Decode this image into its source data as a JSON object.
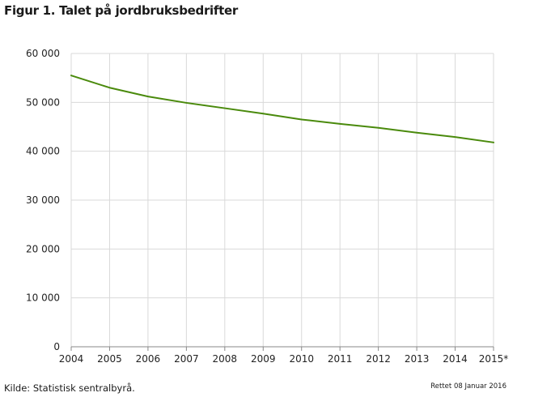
{
  "chart_data": {
    "type": "line",
    "title": "Figur 1. Talet på jordbruksbedrifter",
    "xlabel": "",
    "ylabel": "",
    "categories": [
      "2004",
      "2005",
      "2006",
      "2007",
      "2008",
      "2009",
      "2010",
      "2011",
      "2012",
      "2013",
      "2014",
      "2015*"
    ],
    "series": [
      {
        "values": [
          55500,
          53000,
          51200,
          49900,
          48800,
          47700,
          46500,
          45600,
          44800,
          43800,
          42900,
          41800
        ],
        "color": "#4a8a0c"
      }
    ],
    "ylim": [
      0,
      60000
    ],
    "yticks": [
      0,
      10000,
      20000,
      30000,
      40000,
      50000,
      60000
    ],
    "ytick_labels": [
      "0",
      "10 000",
      "20 000",
      "30 000",
      "40 000",
      "50 000",
      "60 000"
    ],
    "grid": true,
    "grid_color": "#d9d9d9"
  },
  "footer": {
    "source": "Kilde: Statistisk sentralbyrå.",
    "updated": "Rettet 08 Januar 2016"
  }
}
